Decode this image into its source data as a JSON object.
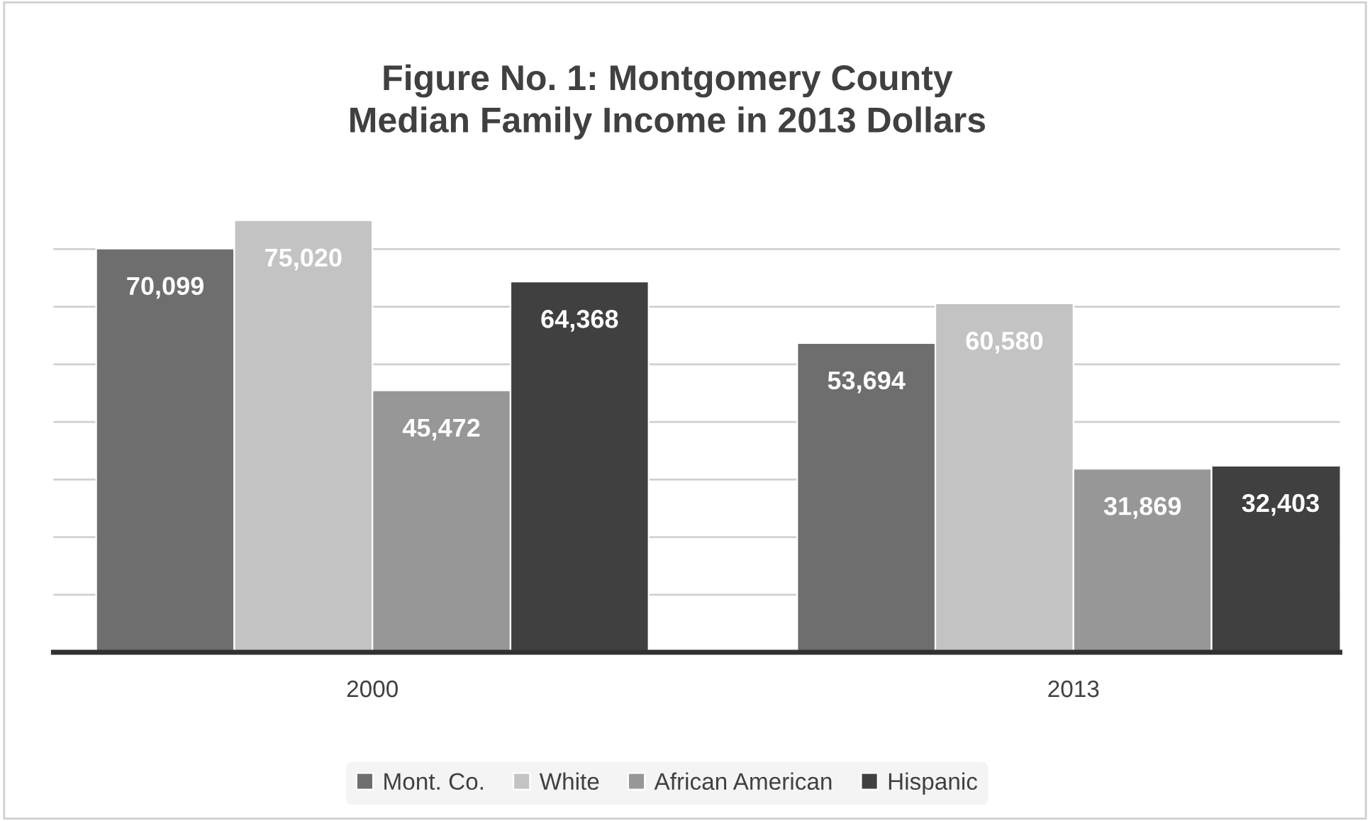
{
  "chart_data": {
    "type": "bar",
    "title": "Figure No. 1: Montgomery County\nMedian Family Income in 2013 Dollars",
    "categories": [
      "2000",
      "2013"
    ],
    "series": [
      {
        "name": "Mont. Co.",
        "color": "#6e6e6e",
        "values": [
          70099,
          53694
        ],
        "value_labels": [
          "70,099",
          "53,694"
        ]
      },
      {
        "name": "White",
        "color": "#c3c3c3",
        "values": [
          75020,
          60580
        ],
        "value_labels": [
          "75,020",
          "60,580"
        ]
      },
      {
        "name": "African American",
        "color": "#979797",
        "values": [
          45472,
          31869
        ],
        "value_labels": [
          "45,472",
          "31,869"
        ]
      },
      {
        "name": "Hispanic",
        "color": "#404040",
        "values": [
          64368,
          32403
        ],
        "value_labels": [
          "64,368",
          "32,403"
        ]
      }
    ],
    "tick_labels": "x",
    "grid": "y",
    "legend": "bottom"
  }
}
